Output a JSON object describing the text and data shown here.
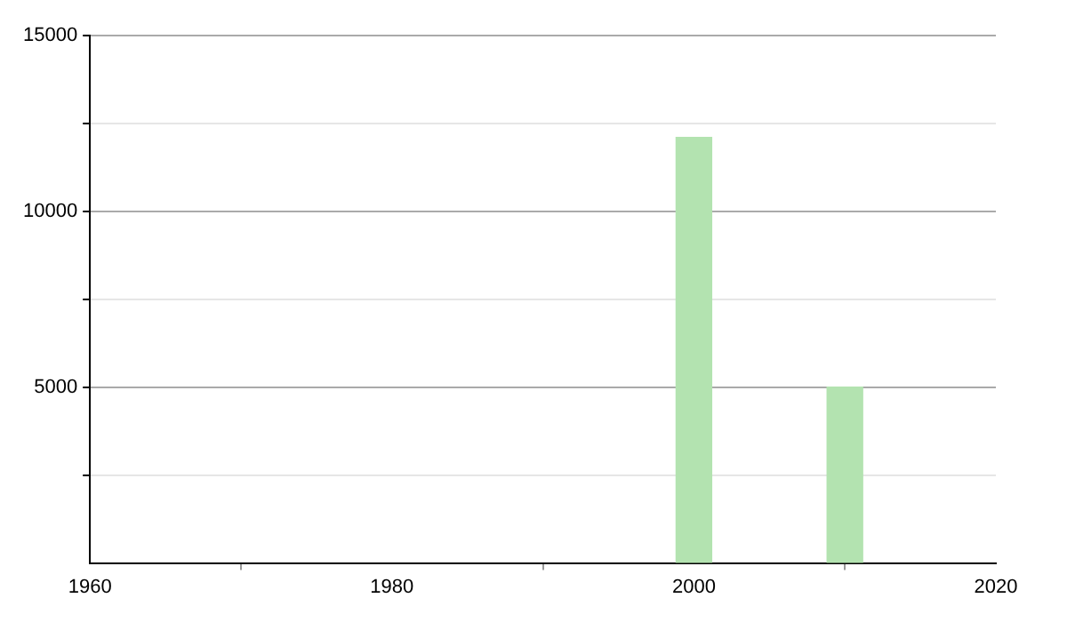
{
  "chart_data": {
    "type": "bar",
    "x": [
      2000,
      2010
    ],
    "values": [
      12100,
      5000
    ],
    "color": "#b3e3b0",
    "xlim": [
      1960,
      2020
    ],
    "xticks": [
      1960,
      1980,
      2000,
      2020
    ],
    "ylim": [
      0,
      15000
    ],
    "yticks": [
      {
        "value": 2500,
        "label": null
      },
      5000,
      {
        "value": 7500,
        "label": null
      },
      10000,
      {
        "value": 12500,
        "label": null
      },
      15000
    ],
    "grid": "y",
    "legend": false
  }
}
